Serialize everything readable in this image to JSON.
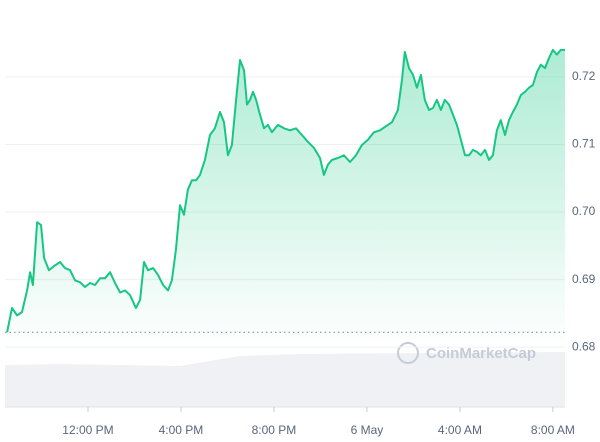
{
  "chart_data": {
    "type": "line",
    "watermark": "CoinMarketCap",
    "color": "#16c784",
    "reference_line": 0.6822,
    "x": [
      8.52,
      8.73,
      8.95,
      9.16,
      9.38,
      9.51,
      9.63,
      9.81,
      9.98,
      10.11,
      10.32,
      10.58,
      10.8,
      11.01,
      11.23,
      11.44,
      11.66,
      11.87,
      12.09,
      12.3,
      12.52,
      12.73,
      12.95,
      13.16,
      13.38,
      13.59,
      13.81,
      14.06,
      14.24,
      14.41,
      14.58,
      14.8,
      15.01,
      15.23,
      15.44,
      15.61,
      15.78,
      15.96,
      16.13,
      16.3,
      16.47,
      16.65,
      16.82,
      17.03,
      17.25,
      17.46,
      17.68,
      17.85,
      18.02,
      18.19,
      18.37,
      18.54,
      18.71,
      18.84,
      18.97,
      19.1,
      19.23,
      19.4,
      19.57,
      19.74,
      19.91,
      20.17,
      20.43,
      20.69,
      20.95,
      21.2,
      21.46,
      21.72,
      21.98,
      22.15,
      22.32,
      22.49,
      22.75,
      23.01,
      23.27,
      23.53,
      23.78,
      24.04,
      24.3,
      24.56,
      24.82,
      25.08,
      25.33,
      25.51,
      25.63,
      25.81,
      25.98,
      26.15,
      26.32,
      26.49,
      26.67,
      26.84,
      27.01,
      27.18,
      27.35,
      27.53,
      27.7,
      27.87,
      28.04,
      28.22,
      28.39,
      28.56,
      28.73,
      28.9,
      29.08,
      29.25,
      29.42,
      29.59,
      29.76,
      29.94,
      30.11,
      30.28,
      30.45,
      30.62,
      30.8,
      30.97,
      31.14,
      31.31,
      31.48,
      31.66,
      31.83,
      32.0,
      32.17,
      32.34,
      32.52
    ],
    "values": [
      0.6822,
      0.6858,
      0.6847,
      0.6852,
      0.6884,
      0.6911,
      0.6892,
      0.6985,
      0.6981,
      0.6932,
      0.6914,
      0.6921,
      0.6926,
      0.6917,
      0.6914,
      0.6899,
      0.6896,
      0.6889,
      0.6895,
      0.6892,
      0.6902,
      0.6902,
      0.6911,
      0.6895,
      0.6881,
      0.6884,
      0.6877,
      0.6858,
      0.687,
      0.6926,
      0.6914,
      0.6917,
      0.6907,
      0.6892,
      0.6884,
      0.6899,
      0.6944,
      0.701,
      0.6996,
      0.7033,
      0.7047,
      0.7047,
      0.7055,
      0.7077,
      0.7114,
      0.7124,
      0.7148,
      0.7133,
      0.7084,
      0.7099,
      0.7166,
      0.7225,
      0.721,
      0.7159,
      0.7166,
      0.7178,
      0.7166,
      0.7144,
      0.7124,
      0.7129,
      0.7118,
      0.7129,
      0.7124,
      0.7121,
      0.7124,
      0.7114,
      0.7104,
      0.7095,
      0.708,
      0.7055,
      0.707,
      0.7077,
      0.708,
      0.7084,
      0.7074,
      0.7084,
      0.7099,
      0.7107,
      0.7118,
      0.7121,
      0.7127,
      0.7133,
      0.7151,
      0.7196,
      0.7237,
      0.7213,
      0.7203,
      0.7184,
      0.7203,
      0.7166,
      0.7151,
      0.7154,
      0.7166,
      0.7151,
      0.7166,
      0.7159,
      0.7144,
      0.7129,
      0.7107,
      0.7084,
      0.7084,
      0.7092,
      0.7089,
      0.7084,
      0.7092,
      0.7077,
      0.7084,
      0.7121,
      0.7136,
      0.7114,
      0.7136,
      0.7148,
      0.7159,
      0.7173,
      0.7178,
      0.7184,
      0.7188,
      0.7207,
      0.7218,
      0.7213,
      0.7228,
      0.724,
      0.7233,
      0.724,
      0.724
    ],
    "xlim": [
      8.43,
      32.52
    ],
    "xticks": [
      {
        "value": 12,
        "label": "12:00 PM"
      },
      {
        "value": 16,
        "label": "4:00 PM"
      },
      {
        "value": 20,
        "label": "8:00 PM"
      },
      {
        "value": 24,
        "label": "6 May"
      },
      {
        "value": 28,
        "label": "4:00 AM"
      },
      {
        "value": 32,
        "label": "8:00 AM"
      }
    ],
    "ylim": [
      0.671,
      0.7299
    ],
    "yticks": [
      0.68,
      0.69,
      {
        "value": 0.7,
        "label": "0.70"
      },
      0.71,
      0.72
    ],
    "grid": true
  }
}
